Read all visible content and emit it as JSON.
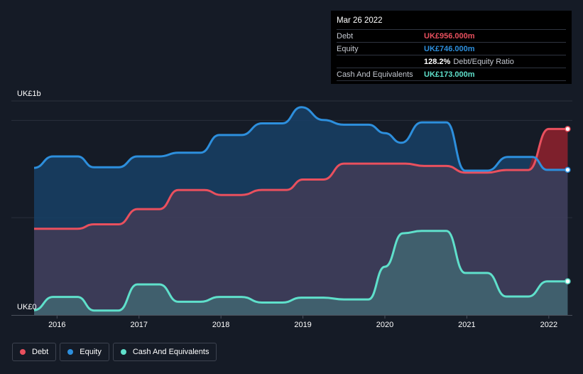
{
  "chart_data": {
    "type": "area",
    "x_ticks": [
      "2016",
      "2017",
      "2018",
      "2019",
      "2020",
      "2021",
      "2022"
    ],
    "y_ticks": [
      "UK£0",
      "UK£1b"
    ],
    "ylim": [
      0,
      1100
    ],
    "xlim": [
      2015.72,
      2022.27
    ],
    "grid": true,
    "series": [
      {
        "name": "Debt",
        "color": "#e9505e",
        "points": [
          [
            2015.72,
            443
          ],
          [
            2016.25,
            443
          ],
          [
            2016.45,
            466
          ],
          [
            2016.75,
            466
          ],
          [
            2016.98,
            544
          ],
          [
            2017.25,
            544
          ],
          [
            2017.48,
            642
          ],
          [
            2017.8,
            642
          ],
          [
            2018.0,
            617
          ],
          [
            2018.25,
            617
          ],
          [
            2018.5,
            643
          ],
          [
            2018.8,
            643
          ],
          [
            2019.0,
            696
          ],
          [
            2019.25,
            696
          ],
          [
            2019.5,
            778
          ],
          [
            2020.25,
            778
          ],
          [
            2020.48,
            766
          ],
          [
            2020.75,
            766
          ],
          [
            2020.98,
            732
          ],
          [
            2021.25,
            732
          ],
          [
            2021.48,
            745
          ],
          [
            2021.75,
            745
          ],
          [
            2022.0,
            956
          ],
          [
            2022.23,
            956
          ]
        ]
      },
      {
        "name": "Equity",
        "color": "#2d8fdd",
        "points": [
          [
            2015.72,
            756
          ],
          [
            2015.95,
            815
          ],
          [
            2016.25,
            815
          ],
          [
            2016.45,
            759
          ],
          [
            2016.75,
            759
          ],
          [
            2016.98,
            815
          ],
          [
            2017.25,
            815
          ],
          [
            2017.48,
            834
          ],
          [
            2017.75,
            834
          ],
          [
            2017.98,
            925
          ],
          [
            2018.25,
            925
          ],
          [
            2018.5,
            985
          ],
          [
            2018.75,
            985
          ],
          [
            2018.98,
            1068
          ],
          [
            2019.25,
            1002
          ],
          [
            2019.5,
            978
          ],
          [
            2019.8,
            978
          ],
          [
            2020.0,
            935
          ],
          [
            2020.2,
            885
          ],
          [
            2020.45,
            990
          ],
          [
            2020.75,
            990
          ],
          [
            2020.98,
            742
          ],
          [
            2021.25,
            742
          ],
          [
            2021.5,
            812
          ],
          [
            2021.8,
            812
          ],
          [
            2021.98,
            746
          ],
          [
            2022.23,
            746
          ]
        ]
      },
      {
        "name": "Cash And Equivalents",
        "color": "#5fe0cb",
        "points": [
          [
            2015.72,
            25
          ],
          [
            2015.95,
            93
          ],
          [
            2016.25,
            93
          ],
          [
            2016.45,
            23
          ],
          [
            2016.75,
            23
          ],
          [
            2016.98,
            157
          ],
          [
            2017.25,
            157
          ],
          [
            2017.48,
            68
          ],
          [
            2017.75,
            68
          ],
          [
            2017.98,
            93
          ],
          [
            2018.25,
            93
          ],
          [
            2018.5,
            64
          ],
          [
            2018.75,
            64
          ],
          [
            2018.98,
            89
          ],
          [
            2019.25,
            89
          ],
          [
            2019.5,
            80
          ],
          [
            2019.8,
            80
          ],
          [
            2020.0,
            248
          ],
          [
            2020.22,
            420
          ],
          [
            2020.45,
            432
          ],
          [
            2020.75,
            432
          ],
          [
            2020.98,
            216
          ],
          [
            2021.25,
            216
          ],
          [
            2021.48,
            95
          ],
          [
            2021.75,
            95
          ],
          [
            2021.98,
            173
          ],
          [
            2022.23,
            173
          ]
        ]
      }
    ],
    "tooltip": {
      "date": "Mar 26 2022",
      "rows": [
        {
          "label": "Debt",
          "value": "UK£956.000m",
          "color": "#e9505e"
        },
        {
          "label": "Equity",
          "value": "UK£746.000m",
          "color": "#2d8fdd"
        },
        {
          "label": "",
          "value": "128.2%",
          "note": "Debt/Equity Ratio",
          "color": "#ffffff"
        },
        {
          "label": "Cash And Equivalents",
          "value": "UK£173.000m",
          "color": "#5fe0cb"
        }
      ]
    },
    "legend": [
      {
        "name": "Debt",
        "color": "#e9505e"
      },
      {
        "name": "Equity",
        "color": "#2d8fdd"
      },
      {
        "name": "Cash And Equivalents",
        "color": "#5fe0cb"
      }
    ]
  }
}
